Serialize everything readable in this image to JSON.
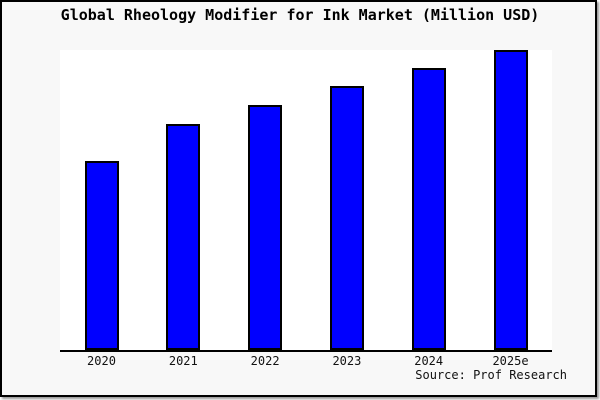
{
  "window": {
    "background_color": "#f8f8f8",
    "frame_border_color": "#000000",
    "plot_background_color": "#ffffff"
  },
  "title": "Global Rheology Modifier for Ink Market (Million USD)",
  "source": "Source: Prof Research",
  "chart_data": {
    "type": "bar",
    "title": "Global Rheology Modifier for Ink Market (Million USD)",
    "categories": [
      "2020",
      "2021",
      "2022",
      "2023",
      "2024",
      "2025e"
    ],
    "values": [
      189,
      226,
      245,
      264,
      282,
      300
    ],
    "value_note": "y-axis has no tick labels or gridlines; values are relative magnitudes estimated from bar heights (2025e bar = 300 = full plot height)",
    "xlabel": "",
    "ylabel": "",
    "ylim": [
      0,
      300
    ],
    "grid": false,
    "legend": false,
    "bar_color": "#0000ff",
    "bar_border_color": "#000000",
    "axis_line_color": "#000000"
  }
}
